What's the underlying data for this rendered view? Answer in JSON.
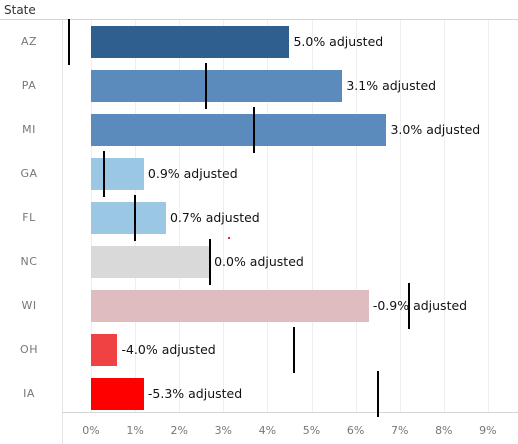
{
  "header": {
    "label": "State"
  },
  "chart_data": {
    "type": "bar",
    "orientation": "horizontal",
    "categories": [
      "AZ",
      "PA",
      "MI",
      "GA",
      "FL",
      "NC",
      "WI",
      "OH",
      "IA"
    ],
    "values": [
      4.5,
      5.7,
      6.7,
      1.2,
      1.7,
      2.7,
      6.3,
      0.6,
      1.2
    ],
    "labels": [
      "5.0% adjusted",
      "3.1% adjusted",
      "3.0% adjusted",
      "0.9% adjusted",
      "0.7% adjusted",
      "0.0% adjusted",
      "-0.9% adjusted",
      "-4.0% adjusted",
      "-5.3% adjusted"
    ],
    "colors": [
      "#2e5f8e",
      "#5a8bbc",
      "#5a8bbc",
      "#9ac7e3",
      "#9ac7e3",
      "#d9d9d9",
      "#dfbcbf",
      "#f04242",
      "#ff0000"
    ],
    "reference_values": [
      -0.5,
      2.6,
      3.7,
      0.3,
      1.0,
      2.7,
      7.2,
      4.6,
      6.5
    ],
    "x_ticks": [
      "0%",
      "1%",
      "2%",
      "3%",
      "4%",
      "5%",
      "6%",
      "7%",
      "8%",
      "9%"
    ],
    "xlim": [
      -0.7,
      9.6
    ],
    "xlabel": "",
    "ylabel": "State",
    "grid": true
  }
}
